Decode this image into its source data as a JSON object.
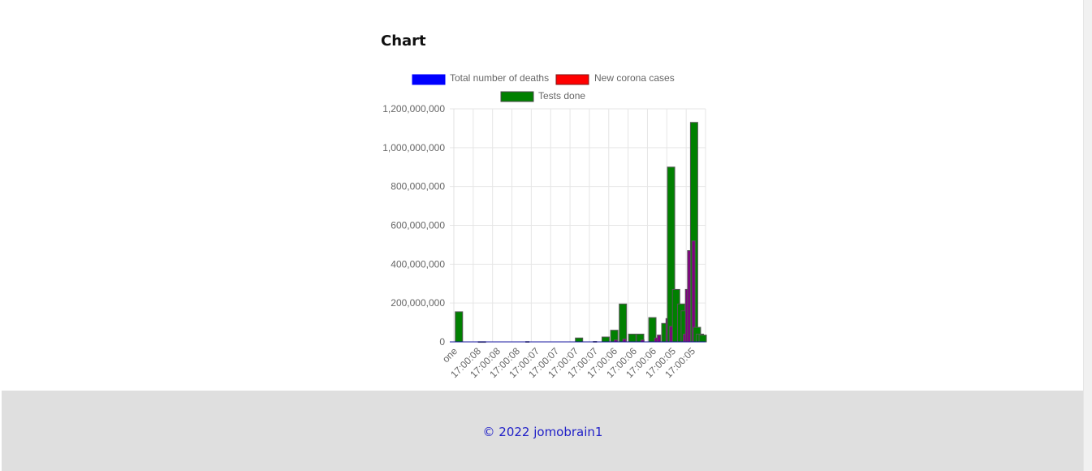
{
  "page": {
    "heading": "Chart"
  },
  "footer": {
    "text": "© 2022 jomobrain1"
  },
  "chart_data": {
    "type": "bar",
    "title": "",
    "xlabel": "",
    "ylabel": "",
    "ylim": [
      0,
      1200000000
    ],
    "yticks": [
      0,
      200000000,
      400000000,
      600000000,
      800000000,
      1000000000,
      1200000000
    ],
    "ytick_labels": [
      "0",
      "200,000,000",
      "400,000,000",
      "600,000,000",
      "800,000,000",
      "1,000,000,000",
      "1,200,000,000"
    ],
    "grid": true,
    "legend_position": "top",
    "xtick_labels": [
      "one",
      "17:00:08",
      "17:00:08",
      "17:00:08",
      "17:00:07",
      "17:00:07",
      "17:00:07",
      "17:00:07",
      "17:00:06",
      "17:00:06",
      "17:00:06",
      "17:00:05",
      "17:00:05"
    ],
    "series": [
      {
        "name": "Total number of deaths",
        "color": "#0000ff",
        "border": "#4444aa",
        "values": [
          0,
          0,
          0,
          0,
          0,
          0,
          0,
          0,
          0,
          0,
          0,
          0,
          0,
          0,
          0,
          0,
          0,
          0,
          0,
          0,
          0,
          0,
          0,
          0,
          0,
          0,
          0,
          0,
          0,
          0,
          0,
          0,
          0,
          0,
          0,
          0,
          0,
          0,
          0,
          0,
          0,
          0,
          0,
          0,
          0,
          0,
          0,
          0,
          0,
          0,
          0,
          0,
          0,
          0,
          0,
          0,
          0,
          0,
          0,
          0,
          0,
          0,
          0,
          0,
          0,
          0,
          0,
          0,
          0,
          0,
          0,
          0,
          0,
          0,
          0,
          0,
          0,
          0,
          0,
          0,
          0,
          0,
          0,
          0,
          0,
          0,
          0,
          0,
          0,
          0,
          0,
          0,
          0,
          0,
          0,
          0,
          0,
          0,
          0,
          0,
          0,
          0,
          0,
          0,
          0,
          0,
          0,
          0,
          0,
          0,
          0,
          0,
          0,
          0,
          0,
          0,
          0,
          0,
          0,
          0,
          0,
          0,
          0,
          0,
          0,
          0,
          0,
          0,
          0,
          0,
          0,
          0,
          0,
          0,
          0,
          0,
          0,
          0,
          0,
          0,
          0,
          0,
          0,
          0,
          0,
          0,
          0,
          0,
          0,
          0,
          0,
          0,
          0,
          0,
          0,
          0,
          0,
          0,
          0,
          0,
          0,
          0,
          0,
          0,
          0,
          0,
          0,
          0,
          0,
          0,
          0,
          0,
          0,
          0,
          0,
          0,
          0,
          0,
          0,
          0,
          0,
          0,
          0,
          0,
          0,
          0,
          0,
          0,
          0,
          0,
          0,
          0,
          0,
          0,
          0,
          0,
          0,
          0,
          0,
          0,
          0,
          0,
          0,
          0,
          0,
          0,
          0,
          0,
          0,
          0,
          0,
          0,
          0,
          0,
          0,
          0,
          0,
          0,
          0,
          0,
          0,
          0,
          0,
          0
        ]
      },
      {
        "name": "New corona cases",
        "color": "#ff0000",
        "border": "#aa2222",
        "values": [
          0,
          0,
          0,
          0,
          0,
          0,
          0,
          0,
          0,
          0,
          0,
          0,
          0,
          0,
          0,
          0,
          0,
          0,
          0,
          0,
          0,
          0,
          0,
          0,
          0,
          0,
          0,
          0,
          0,
          0,
          0,
          0,
          0,
          0,
          0,
          0,
          0,
          0,
          0,
          0,
          0,
          0,
          0,
          0,
          0,
          0,
          0,
          0,
          0,
          0,
          0,
          0,
          0,
          0,
          0,
          0,
          0,
          0,
          0,
          0,
          0,
          0,
          0,
          0,
          0,
          0,
          0,
          0,
          0,
          0,
          0,
          0,
          0,
          0,
          0,
          0,
          0,
          0,
          0,
          0,
          0,
          0,
          0,
          0,
          0,
          0,
          0,
          0,
          0,
          0,
          0,
          0,
          0,
          0,
          0,
          0,
          0,
          0,
          0,
          0,
          0,
          0,
          0,
          0,
          0,
          0,
          0,
          0,
          0,
          0,
          0,
          0,
          0,
          0,
          0,
          0,
          0,
          0,
          0,
          0,
          0,
          0,
          0,
          0,
          0,
          0,
          0,
          0,
          0,
          0,
          0,
          0,
          0,
          0,
          0,
          0,
          0,
          0,
          0,
          0,
          0,
          0,
          0,
          0,
          0,
          0,
          0,
          0,
          0,
          0,
          0,
          0,
          0,
          0,
          0,
          0,
          0,
          0,
          0,
          0,
          0,
          0,
          0,
          0,
          0,
          0,
          0,
          0,
          0,
          0,
          0,
          0,
          0,
          0,
          0,
          0,
          0,
          0,
          0,
          0,
          0,
          0,
          0,
          0,
          0,
          0,
          0,
          0,
          0,
          0,
          0,
          0,
          0,
          0,
          0,
          0,
          0,
          0,
          0,
          0,
          0,
          0,
          0,
          0,
          0,
          0,
          0,
          0,
          0,
          0,
          0,
          0,
          0,
          0,
          0,
          0,
          0,
          0,
          0,
          0,
          0,
          0,
          0,
          0
        ]
      },
      {
        "name": "Tests done",
        "color": "#008000",
        "border": "#555555",
        "values": [
          155000000,
          1000000,
          0,
          0,
          0,
          0,
          0,
          0,
          0,
          0,
          0,
          0,
          0,
          0,
          0,
          0,
          0,
          0,
          0,
          0,
          0,
          0,
          0,
          0,
          0,
          0,
          0,
          0,
          0,
          0,
          0,
          0,
          0,
          0,
          0,
          0,
          0,
          0,
          0,
          0,
          0,
          0,
          0,
          0,
          0,
          0,
          0,
          0,
          0,
          0,
          0,
          0,
          0,
          0,
          0,
          0,
          0,
          0,
          0,
          0,
          0,
          0,
          0,
          0,
          0,
          0,
          0,
          0,
          0,
          0,
          0,
          0,
          0,
          0,
          0,
          0,
          0,
          0,
          0,
          0,
          0,
          0,
          0,
          0,
          0,
          0,
          0,
          0,
          0,
          0,
          0,
          0,
          0,
          0,
          0,
          0,
          0,
          0,
          0,
          0,
          0,
          0,
          0,
          0,
          0,
          0,
          0,
          0,
          0,
          0,
          0,
          0,
          0,
          0,
          0,
          0,
          0,
          0,
          0,
          0,
          0,
          0,
          0,
          0,
          0,
          0,
          0,
          0,
          0,
          0,
          0,
          0,
          0,
          0,
          0,
          0,
          0,
          0,
          0,
          0,
          0,
          0,
          0,
          0,
          0,
          0,
          0,
          0,
          0,
          0,
          0,
          0,
          0,
          0,
          0,
          0,
          0,
          0,
          0,
          0,
          0,
          0,
          0,
          0,
          0,
          0,
          0,
          0,
          0,
          0,
          0,
          0,
          0,
          0,
          0,
          0,
          0,
          0,
          0,
          0,
          0,
          0,
          0,
          0,
          0,
          0,
          0,
          0,
          0,
          0,
          0,
          0,
          0,
          0,
          0,
          0,
          0,
          0,
          0,
          0,
          0,
          0,
          0,
          0,
          0,
          0,
          0,
          0,
          0,
          0,
          0,
          0,
          0,
          0,
          0,
          0,
          0,
          0,
          0,
          0,
          0,
          0,
          0,
          0
        ]
      }
    ],
    "bars": [
      {
        "x": 0.2,
        "value": 155000000,
        "color": "#008000"
      },
      {
        "x": 3.4,
        "value": 1000000,
        "color": "#008000"
      },
      {
        "x": 10.0,
        "value": 1500000,
        "color": "#800080"
      },
      {
        "x": 16.9,
        "value": 20000000,
        "color": "#008000"
      },
      {
        "x": 19.4,
        "value": 2000000,
        "color": "#800080"
      },
      {
        "x": 20.6,
        "value": 25000000,
        "color": "#008000"
      },
      {
        "x": 21.8,
        "value": 60000000,
        "color": "#008000"
      },
      {
        "x": 22.3,
        "value": 10000000,
        "color": "#800080"
      },
      {
        "x": 23.0,
        "value": 195000000,
        "color": "#008000"
      },
      {
        "x": 23.5,
        "value": 15000000,
        "color": "#800080"
      },
      {
        "x": 24.3,
        "value": 40000000,
        "color": "#008000"
      },
      {
        "x": 25.4,
        "value": 40000000,
        "color": "#008000"
      },
      {
        "x": 26.0,
        "value": 10000000,
        "color": "#800080"
      },
      {
        "x": 27.1,
        "value": 125000000,
        "color": "#008000"
      },
      {
        "x": 27.9,
        "value": 20000000,
        "color": "#800080"
      },
      {
        "x": 28.3,
        "value": 35000000,
        "color": "#800080"
      },
      {
        "x": 28.9,
        "value": 95000000,
        "color": "#008000"
      },
      {
        "x": 29.5,
        "value": 120000000,
        "color": "#800080"
      },
      {
        "x": 29.7,
        "value": 900000000,
        "color": "#008000"
      },
      {
        "x": 30.0,
        "value": 80000000,
        "color": "#800080"
      },
      {
        "x": 30.4,
        "value": 270000000,
        "color": "#008000"
      },
      {
        "x": 31.1,
        "value": 195000000,
        "color": "#008000"
      },
      {
        "x": 31.6,
        "value": 160000000,
        "color": "#008000"
      },
      {
        "x": 31.9,
        "value": 40000000,
        "color": "#800080"
      },
      {
        "x": 32.2,
        "value": 270000000,
        "color": "#800080"
      },
      {
        "x": 32.5,
        "value": 470000000,
        "color": "#800080"
      },
      {
        "x": 32.9,
        "value": 1130000000,
        "color": "#008000"
      },
      {
        "x": 33.1,
        "value": 520000000,
        "color": "#800080"
      },
      {
        "x": 33.3,
        "value": 75000000,
        "color": "#008000"
      },
      {
        "x": 33.7,
        "value": 40000000,
        "color": "#008000"
      },
      {
        "x": 34.1,
        "value": 35000000,
        "color": "#008000"
      }
    ]
  }
}
